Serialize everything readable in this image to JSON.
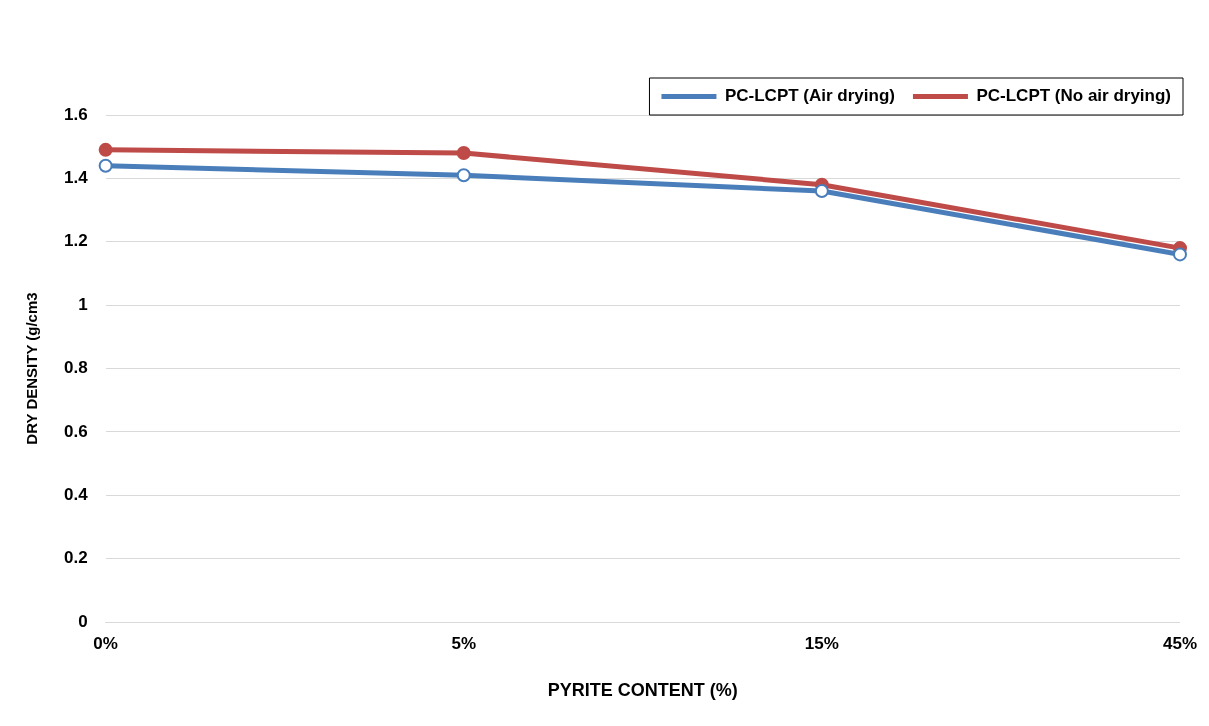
{
  "chart_data": {
    "type": "line",
    "xlabel": "PYRITE CONTENT (%)",
    "ylabel": "DRY DENSITY (g/cm3",
    "categories": [
      "0%",
      "5%",
      "15%",
      "45%"
    ],
    "series": [
      {
        "name": "PC-LCPT (Air drying)",
        "color": "#4a7ebb",
        "values": [
          1.44,
          1.41,
          1.36,
          1.16
        ]
      },
      {
        "name": "PC-LCPT (No air drying)",
        "color": "#be4b48",
        "values": [
          1.49,
          1.48,
          1.38,
          1.18
        ]
      }
    ],
    "ylim": [
      0,
      1.6
    ],
    "yticks": [
      0,
      0.2,
      0.4,
      0.6,
      0.8,
      1,
      1.2,
      1.4,
      1.6
    ],
    "grid": "y",
    "legend": "top right",
    "marker": "circle",
    "line_style": "solid"
  }
}
